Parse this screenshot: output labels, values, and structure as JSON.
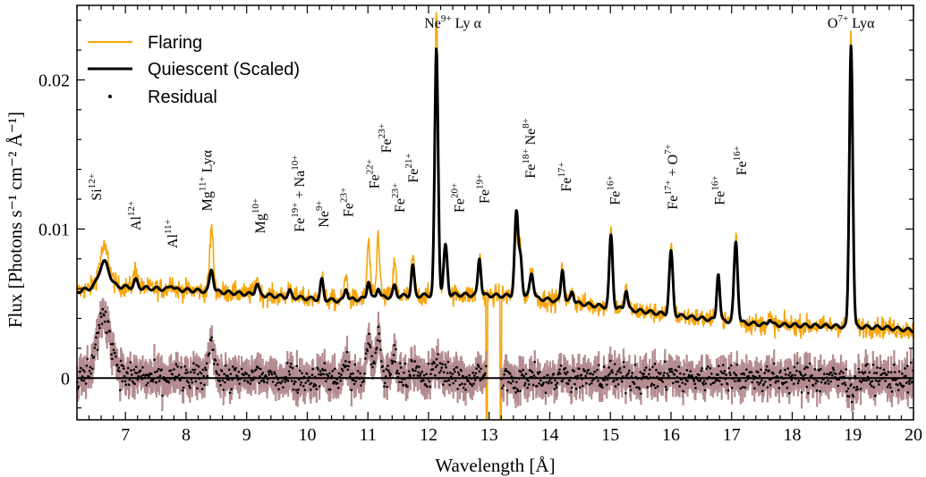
{
  "chart_data": {
    "type": "line",
    "title": "",
    "xlabel": "Wavelength [Å]",
    "ylabel": "Flux [Photons s⁻¹ cm⁻² Å⁻¹]",
    "xlim": [
      6.2,
      20.0
    ],
    "ylim": [
      -0.0028,
      0.025
    ],
    "xticks": [
      7,
      8,
      9,
      10,
      11,
      12,
      13,
      14,
      15,
      16,
      17,
      18,
      19,
      20
    ],
    "yticks": [
      0,
      0.01,
      0.02
    ],
    "ytick_labels": [
      "0",
      "0.01",
      "0.02"
    ],
    "grid": false,
    "legend_position": "top-left",
    "colors": {
      "flaring": "#f5a50b",
      "quiescent": "#000000",
      "residual": "#000000",
      "residual_band": "#b48c8f"
    },
    "series": [
      {
        "name": "Flaring",
        "style": "line"
      },
      {
        "name": "Quiescent (Scaled)",
        "style": "line"
      },
      {
        "name": "Residual",
        "style": "dots"
      }
    ],
    "continuum": [
      [
        6.2,
        0.0058
      ],
      [
        6.6,
        0.0062
      ],
      [
        7.5,
        0.006
      ],
      [
        8.5,
        0.0058
      ],
      [
        9.5,
        0.0055
      ],
      [
        10.5,
        0.0052
      ],
      [
        11.5,
        0.0055
      ],
      [
        12.5,
        0.0056
      ],
      [
        13.5,
        0.0055
      ],
      [
        14.5,
        0.005
      ],
      [
        15.5,
        0.0045
      ],
      [
        16.5,
        0.004
      ],
      [
        17.5,
        0.0036
      ],
      [
        18.5,
        0.0035
      ],
      [
        19.5,
        0.0034
      ],
      [
        20.0,
        0.0032
      ]
    ],
    "lines": [
      {
        "wl": 6.65,
        "q": 0.0016,
        "f": 0.0025,
        "w": 0.08,
        "d": 0.004
      },
      {
        "wl": 7.17,
        "q": 0.0005,
        "f": 0.0013,
        "w": 0.03,
        "d": 0.0003
      },
      {
        "wl": 7.76,
        "q": 0.0003,
        "f": 0.0006,
        "w": 0.03,
        "d": 0.0002
      },
      {
        "wl": 8.42,
        "q": 0.0015,
        "f": 0.0042,
        "w": 0.03,
        "d": 0.0025
      },
      {
        "wl": 9.17,
        "q": 0.0007,
        "f": 0.0011,
        "w": 0.03,
        "d": 0.0004
      },
      {
        "wl": 9.71,
        "q": 0.0004,
        "f": 0.0008,
        "w": 0.025,
        "d": 0.0004
      },
      {
        "wl": 10.24,
        "q": 0.0013,
        "f": 0.0016,
        "w": 0.025,
        "d": 0.0004
      },
      {
        "wl": 10.64,
        "q": 0.0008,
        "f": 0.0016,
        "w": 0.025,
        "d": 0.0012
      },
      {
        "wl": 11.01,
        "q": 0.0012,
        "f": 0.0038,
        "w": 0.025,
        "d": 0.0022
      },
      {
        "wl": 11.17,
        "q": 0.0007,
        "f": 0.0042,
        "w": 0.025,
        "d": 0.003
      },
      {
        "wl": 11.44,
        "q": 0.0007,
        "f": 0.0022,
        "w": 0.025,
        "d": 0.0015
      },
      {
        "wl": 11.74,
        "q": 0.002,
        "f": 0.0026,
        "w": 0.025,
        "d": 0.0012
      },
      {
        "wl": 12.13,
        "q": 0.0165,
        "f": 0.019,
        "w": 0.028,
        "d": 0.001
      },
      {
        "wl": 12.28,
        "q": 0.0033,
        "f": 0.0034,
        "w": 0.03,
        "d": 0.0006
      },
      {
        "wl": 12.84,
        "q": 0.0025,
        "f": 0.0027,
        "w": 0.025,
        "d": 0.0004
      },
      {
        "wl": 13.45,
        "q": 0.0056,
        "f": 0.0045,
        "w": 0.03,
        "d": -0.0008
      },
      {
        "wl": 13.52,
        "q": 0.0025,
        "f": 0.0028,
        "w": 0.025,
        "d": 0.0004
      },
      {
        "wl": 13.7,
        "q": 0.0017,
        "f": 0.0018,
        "w": 0.03,
        "d": 0.0003
      },
      {
        "wl": 14.21,
        "q": 0.0022,
        "f": 0.0022,
        "w": 0.025,
        "d": 0.0003
      },
      {
        "wl": 14.37,
        "q": 0.0008,
        "f": 0.0009,
        "w": 0.025,
        "d": 0.0002
      },
      {
        "wl": 15.01,
        "q": 0.0048,
        "f": 0.0052,
        "w": 0.028,
        "d": 0.0004
      },
      {
        "wl": 15.26,
        "q": 0.0013,
        "f": 0.0014,
        "w": 0.025,
        "d": 0.0002
      },
      {
        "wl": 16.0,
        "q": 0.0042,
        "f": 0.0044,
        "w": 0.03,
        "d": 0.0004
      },
      {
        "wl": 16.78,
        "q": 0.0032,
        "f": 0.0033,
        "w": 0.025,
        "d": 0.0003
      },
      {
        "wl": 17.07,
        "q": 0.0054,
        "f": 0.0057,
        "w": 0.03,
        "d": 0.0004
      },
      {
        "wl": 17.63,
        "q": 0.0004,
        "f": 0.0005,
        "w": 0.025,
        "d": 0.0001
      },
      {
        "wl": 18.97,
        "q": 0.019,
        "f": 0.0192,
        "w": 0.028,
        "d": -0.001
      }
    ],
    "gap": [
      12.95,
      13.2
    ],
    "legend": {
      "flaring": "Flaring",
      "quiescent": "Quiescent (Scaled)",
      "residual": "Residual"
    },
    "line_labels": [
      {
        "id": "si12",
        "x": 6.6,
        "y": 0.0119,
        "base": "Si",
        "sup": "12+",
        "rot": true
      },
      {
        "id": "al12",
        "x": 7.25,
        "y": 0.0099,
        "base": "Al",
        "sup": "12+",
        "rot": true
      },
      {
        "id": "al11",
        "x": 7.85,
        "y": 0.0087,
        "base": "Al",
        "sup": "11+",
        "rot": true
      },
      {
        "id": "mg11",
        "x": 8.42,
        "y": 0.0112,
        "base": "Mg",
        "sup": "11+",
        "tail": "Lyα",
        "rot": true
      },
      {
        "id": "mg10",
        "x": 9.3,
        "y": 0.0097,
        "base": "Mg",
        "sup": "10+",
        "rot": true
      },
      {
        "id": "fe19na",
        "x": 9.95,
        "y": 0.0098,
        "base": "Fe",
        "sup": "19+",
        "tail": "+ Na",
        "tailsup": "10+",
        "rot": true
      },
      {
        "id": "ne9",
        "x": 10.35,
        "y": 0.0101,
        "base": "Ne",
        "sup": "9+",
        "rot": true
      },
      {
        "id": "fe23a",
        "x": 10.75,
        "y": 0.0108,
        "base": "Fe",
        "sup": "23+",
        "rot": true
      },
      {
        "id": "fe22",
        "x": 11.18,
        "y": 0.0127,
        "base": "Fe",
        "sup": "22+",
        "rot": true
      },
      {
        "id": "fe23b",
        "x": 11.38,
        "y": 0.0151,
        "base": "Fe",
        "sup": "23+",
        "rot": true
      },
      {
        "id": "fe23c",
        "x": 11.6,
        "y": 0.0111,
        "base": "Fe",
        "sup": "23+",
        "rot": true
      },
      {
        "id": "fe21",
        "x": 11.82,
        "y": 0.0131,
        "base": "Fe",
        "sup": "21+",
        "rot": true
      },
      {
        "id": "ne9a",
        "x": 12.4,
        "y": 0.0235,
        "base": "Ne",
        "sup": "9+",
        "tail": "Ly α",
        "rot": false
      },
      {
        "id": "fe20",
        "x": 12.58,
        "y": 0.0111,
        "base": "Fe",
        "sup": "20+",
        "rot": true
      },
      {
        "id": "fe19",
        "x": 13.0,
        "y": 0.0117,
        "base": "Fe",
        "sup": "19+",
        "rot": true
      },
      {
        "id": "fe18ne8",
        "x": 13.76,
        "y": 0.0134,
        "base": "Fe",
        "sup": "18+",
        "tail": "Ne",
        "tailsup": "8+",
        "rot": true
      },
      {
        "id": "fe17",
        "x": 14.35,
        "y": 0.0125,
        "base": "Fe",
        "sup": "17+",
        "rot": true
      },
      {
        "id": "fe16a",
        "x": 15.15,
        "y": 0.0116,
        "base": "Fe",
        "sup": "16+",
        "rot": true
      },
      {
        "id": "fe17o7",
        "x": 16.1,
        "y": 0.0113,
        "base": "Fe",
        "sup": "17+",
        "tail": "+ O",
        "tailsup": "7+",
        "rot": true
      },
      {
        "id": "fe16b",
        "x": 16.88,
        "y": 0.0116,
        "base": "Fe",
        "sup": "16+",
        "rot": true
      },
      {
        "id": "fe16c",
        "x": 17.24,
        "y": 0.0136,
        "base": "Fe",
        "sup": "16+",
        "rot": true
      },
      {
        "id": "o7",
        "x": 18.97,
        "y": 0.0235,
        "base": "O",
        "sup": "7+",
        "tail": "Lyα",
        "rot": false
      }
    ]
  }
}
